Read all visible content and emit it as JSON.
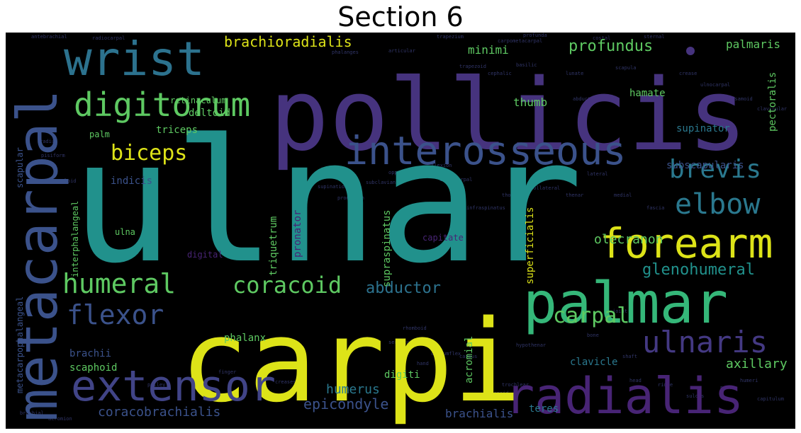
{
  "title": "Section 6",
  "palette": {
    "purple": "#463480",
    "teal": "#21918c",
    "yellow": "#dde318",
    "green": "#5ec962",
    "blue": "#3b528b",
    "darkpurple": "#440154",
    "lightgreen": "#7ad151"
  },
  "words": {
    "ulnar": "ulnar",
    "carpi": "carpi",
    "pollicis": "pollicis",
    "metacarpal": "metacarpal",
    "palmar": "palmar",
    "radialis": "radialis",
    "extensor": "extensor",
    "wrist": "wrist",
    "interosseous": "interosseous",
    "digitorum": "digitorum",
    "forearm": "forearm",
    "ulnaris": "ulnaris",
    "elbow": "elbow",
    "brevis": "brevis",
    "humeral": "humeral",
    "coracoid": "coracoid",
    "flexor": "flexor",
    "biceps": "biceps",
    "brachioradialis": "brachioradialis",
    "profundus": "profundus",
    "carpal": "carpal",
    "abductor": "abductor",
    "glenohumeral": "glenohumeral",
    "epicondyle": "epicondyle",
    "coracobrachialis": "coracobrachialis",
    "humerus": "humerus",
    "olecranon": "olecranon",
    "axillary": "axillary",
    "supinator": "supinator",
    "subscapularis": "subscapularis",
    "hamate": "hamate",
    "brachialis": "brachialis",
    "palmaris": "palmaris",
    "pectoralis": "pectoralis",
    "supraspinatus": "supraspinatus",
    "superficialis": "superficialis",
    "pronator": "pronator",
    "triquetrum": "triquetrum",
    "acromial": "acromial",
    "clavicle": "clavicle",
    "digiti": "digiti",
    "teres": "teres",
    "phalanx": "phalanx",
    "scaphoid": "scaphoid",
    "brachii": "brachii",
    "ulna": "ulna",
    "indicis": "indicis",
    "interphalangeal": "interphalangeal",
    "metacarpophalangeal": "metacarpophalangeal",
    "scapular": "scapular",
    "triceps": "triceps",
    "deltoid": "deltoid",
    "palm": "palm",
    "retinaculum": "retinaculum",
    "minimi": "minimi",
    "thumb": "thumb",
    "digital": "digital",
    "capitate": "capitate",
    "small": [
      "antebrachial",
      "radiocarpal",
      "phalanges",
      "articular",
      "carpometacarpal",
      "profunda",
      "lunate",
      "abduction",
      "scapula",
      "trapezium",
      "trapezoid",
      "cephalic",
      "basilic",
      "costal",
      "sternal",
      "radius",
      "pisiform",
      "styloid",
      "tunnel",
      "supination",
      "pronation",
      "subclavian",
      "opponens",
      "flexion",
      "intercarpal",
      "infraspinatus",
      "thoracic",
      "collateral",
      "thenar",
      "lateral",
      "medial",
      "fascia",
      "joint",
      "bone",
      "shaft",
      "head",
      "ridge",
      "sulcus",
      "nerve",
      "humeri",
      "capitulum",
      "brachial",
      "acromion",
      "pulley",
      "finger",
      "creases",
      "serratus",
      "rhomboid",
      "hand",
      "circumflex",
      "carpus",
      "glenoid",
      "trochlear",
      "hypothenar",
      "crease",
      "ulnocarpal",
      "sesamoid",
      "clavicular"
    ]
  }
}
